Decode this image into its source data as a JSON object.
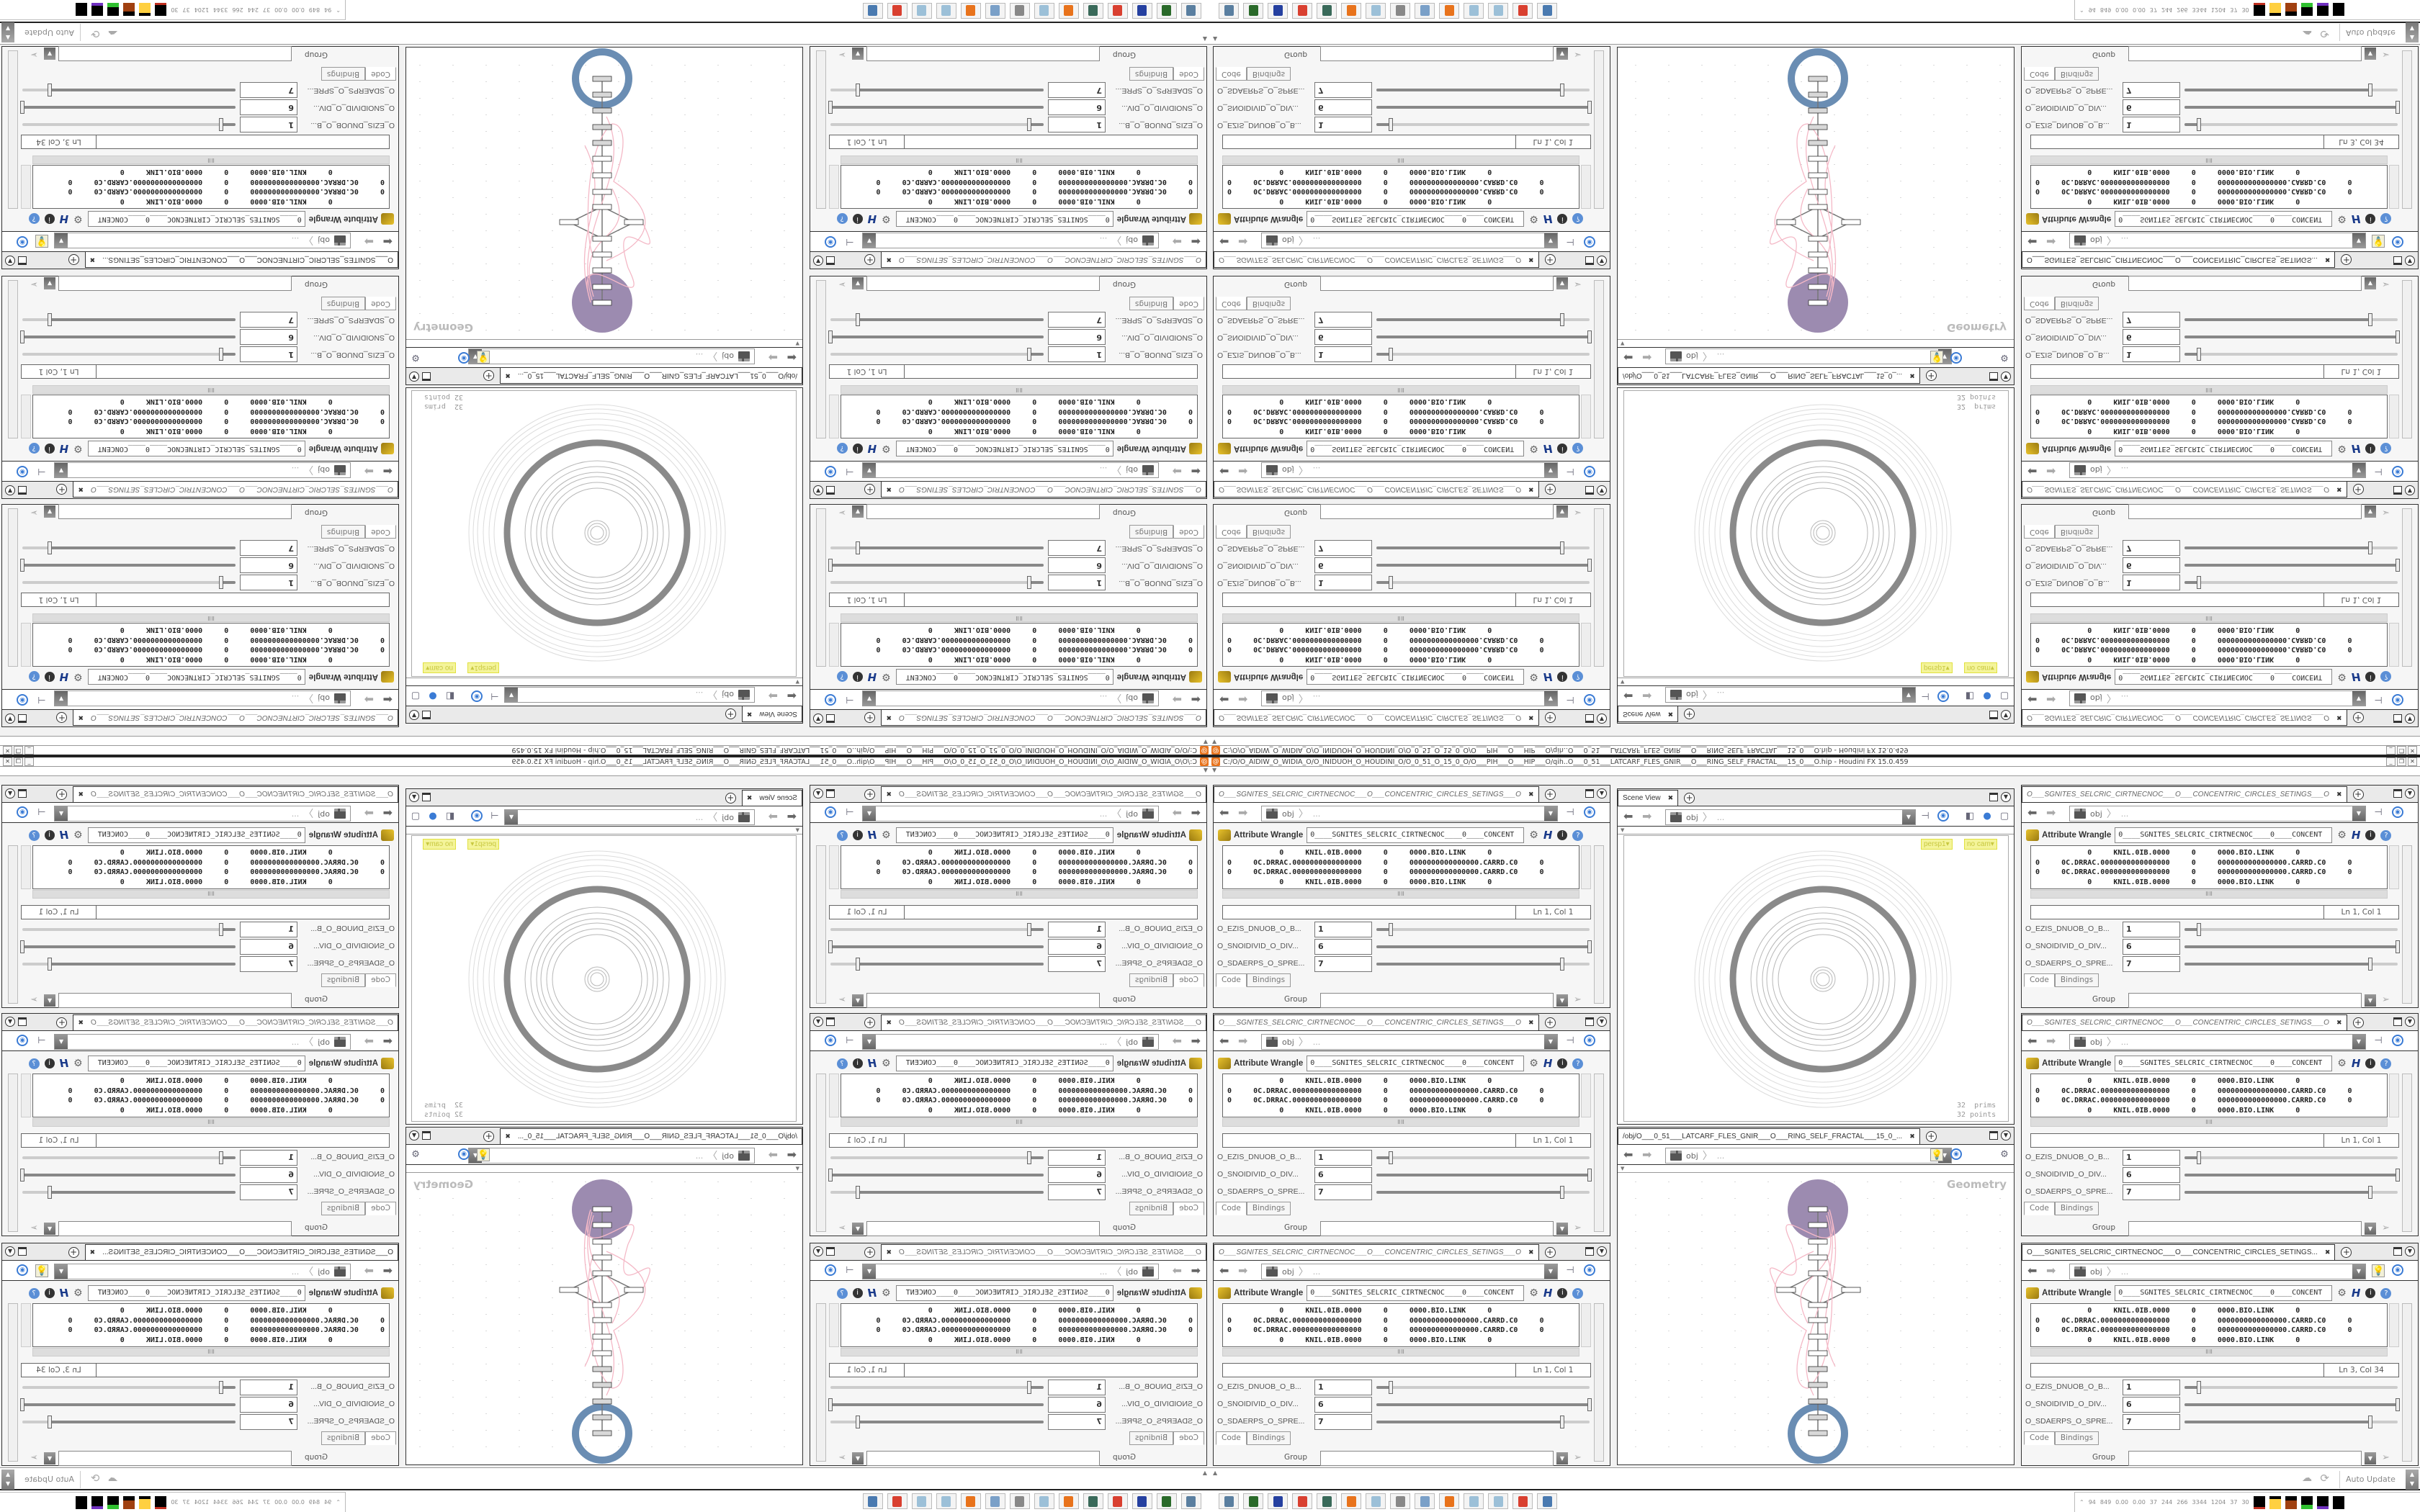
{
  "window": {
    "title": "C:/O/O_AIDIW_O_WIDIA_O/O_INIDUOH_O_HOUDINI_O/O_0_51_O_15_0_O/O___PIH___O___HIP___O/qih..O___0_51___LATCARF_FLES_GNIR___O___RING_SELF_FRACTAL___15_0___O.hip - Houdini FX 15.0.459",
    "app_icon": "houdini-icon",
    "buttons": [
      "_",
      "❐",
      "✕"
    ],
    "mirroring": "four-way kaleidoscope (left-right and top-bottom mirrored copies)"
  },
  "wrangle": {
    "path_root": "obj",
    "path_more": "...",
    "node_type": "Attribute Wrangle",
    "node_name": "0____SGNITES_SELCRIC_CIRTNECNOC____0____CONCENT",
    "code_lines": [
      "            0     KNIL.0IB.0000     0     0000.BIO.LINK     0",
      "0     0C.DRRAC.0000000000000000     0     0000000000000000.CARRD.C0     0",
      "0     0C.DRRAC.0000000000000000     0     0000000000000000.CARRD.C0     0",
      "            0     KNIL.0IB.0000     0     0000.BIO.LINK     0"
    ],
    "params": [
      {
        "label": "O_EZIS_DNUOB_O_B...",
        "value": "1",
        "slider_fraction": 0.066
      },
      {
        "label": "O_SNOIDIVID_O_DIV...",
        "value": "6",
        "slider_fraction": 1.0
      },
      {
        "label": "O_SDAERPS_O_SPRE...",
        "value": "7",
        "slider_fraction": 0.87
      }
    ],
    "tabs": [
      "Code",
      "Bindings"
    ],
    "group_label": "Group",
    "group_value": ""
  },
  "param_panels": [
    {
      "tab_label": "O___SGNITES_SELCRIC_CIRTNECNOC___O___CONCENTRIC_CIRCLES_SETINGS___O",
      "cursor": "Ln 1, Col 1",
      "active": false
    },
    {
      "tab_label": "O___SGNITES_SELCRIC_CIRTNECNOC___O___CONCENTRIC_CIRCLES_SETINGS___O",
      "cursor": "Ln 1, Col 1",
      "active": false
    },
    {
      "tab_label": "O___SGNITES_SELCRIC_CIRTNECNOC___O___CONCENTRIC_CIRCLES_SETINGS___O",
      "cursor": "Ln 1, Col 1",
      "active": false
    },
    {
      "tab_label": "O___SGNITES_SELCRIC_CIRTNECNOC___O___CONCENTRIC_CIRCLES_SETINGS___O",
      "cursor": "Ln 1, Col 1",
      "active": false
    },
    {
      "tab_label": "O___SGNITES_SELCRIC_CIRTNECNOC___O___CONCENTRIC_CIRCLES_SETINGS___O",
      "cursor": "Ln 1, Col 1",
      "active": false
    },
    {
      "tab_label": "O___SGNITES_SELCRIC_CIRTNECNOC___O___CONCENTRIC_CIRCLES_SETINGS...",
      "cursor": "Ln 3, Col 34",
      "active": true
    }
  ],
  "scene_view": {
    "tab_label": "Scene View",
    "path_root": "obj",
    "path_more": "...",
    "camera": "persp1▾",
    "cam_menu": "no cam▾",
    "prims": "32  prims",
    "points": "32 points"
  },
  "network_view": {
    "tab_label": "/obj/O___0_51___LATCARF_FLES_GNIR___O___RING_SELF_FRACTAL___15_0_...",
    "path_root": "obj",
    "path_more": "...",
    "context_label": "Geometry",
    "colors": {
      "display_flag": "#9c8bb0",
      "render_ring": "#6a8db3",
      "wires": "#f4b8c6"
    }
  },
  "bottom_bar": {
    "auto_update": "Auto Update"
  },
  "taskbar": {
    "icons": [
      "webcam-icon",
      "terminal-icon",
      "floppy-64-icon",
      "chrome-icon",
      "monitor-icon",
      "houdini-icon",
      "notepad-icon",
      "speaker-icon",
      "calculator-icon",
      "houdini-icon",
      "notepad-icon",
      "notepad-icon",
      "chrome-icon",
      "picture-icon"
    ],
    "stats": [
      "94",
      "849",
      "0.00",
      "0.00",
      "37",
      "244",
      "266",
      "3344",
      "1204",
      "37",
      "30"
    ]
  }
}
